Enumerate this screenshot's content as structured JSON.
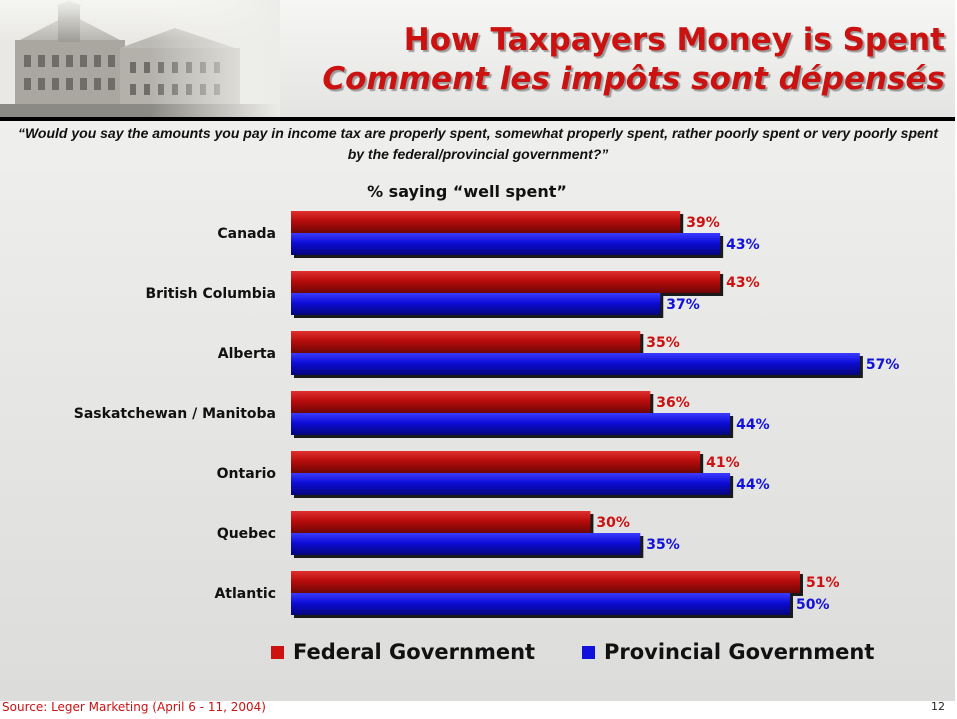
{
  "header": {
    "title_en": "How Taxpayers Money is Spent",
    "title_fr": "Comment les impôts sont dépensés"
  },
  "question": "“Would you say the amounts you pay in income tax are properly spent, somewhat properly spent, rather poorly spent or very poorly spent by the federal/provincial government?”",
  "chart_data": {
    "type": "bar",
    "orientation": "horizontal",
    "title": "% saying “well spent”",
    "categories": [
      "Canada",
      "British Columbia",
      "Alberta",
      "Saskatchewan / Manitoba",
      "Ontario",
      "Quebec",
      "Atlantic"
    ],
    "series": [
      {
        "name": "Federal Government",
        "color": "#cc1111",
        "values": [
          39,
          43,
          35,
          36,
          41,
          30,
          51
        ],
        "labels": [
          "39%",
          "43%",
          "35%",
          "36%",
          "41%",
          "30%",
          "51%"
        ]
      },
      {
        "name": "Provincial Government",
        "color": "#1111dd",
        "values": [
          43,
          37,
          57,
          44,
          44,
          35,
          50
        ],
        "labels": [
          "43%",
          "37%",
          "57%",
          "44%",
          "44%",
          "35%",
          "50%"
        ]
      }
    ],
    "xlim": [
      0,
      57
    ],
    "grid": false,
    "legend": "bottom"
  },
  "footer": {
    "source": "Source: Leger Marketing (April 6 - 11, 2004)",
    "page_number": "12"
  }
}
